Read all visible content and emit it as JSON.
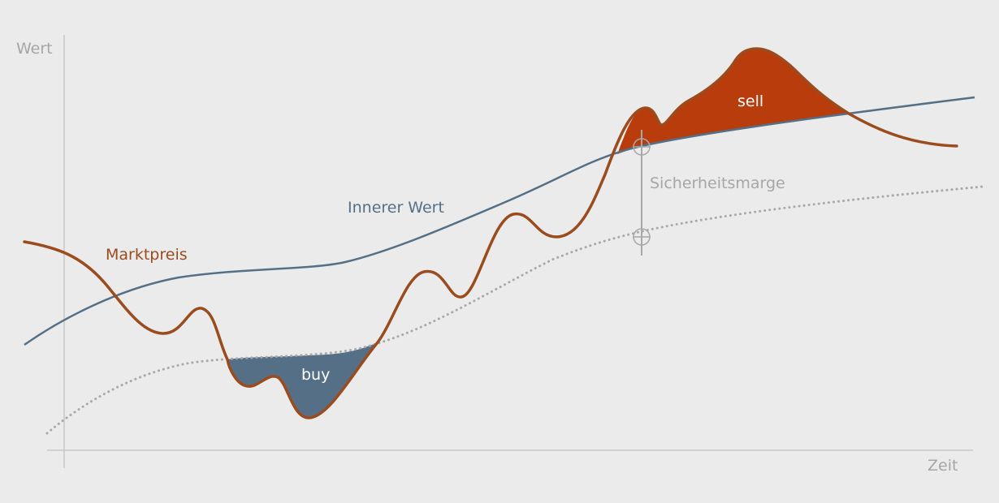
{
  "axes": {
    "y_label": "Wert",
    "x_label": "Zeit"
  },
  "labels": {
    "market_price": "Marktpreis",
    "intrinsic_value": "Innerer Wert",
    "margin_of_safety": "Sicherheitsmarge",
    "buy_zone": "buy",
    "sell_zone": "sell"
  },
  "colors": {
    "background": "#ebebeb",
    "axis": "#c8c8c8",
    "axis_text": "#a6a6a6",
    "market_price": "#9a4c1e",
    "intrinsic_value": "#557086",
    "safety_line": "#a8a8a8",
    "buy_fill": "#557086",
    "sell_fill": "#b93c0c",
    "zone_text": "#ffffff"
  }
}
